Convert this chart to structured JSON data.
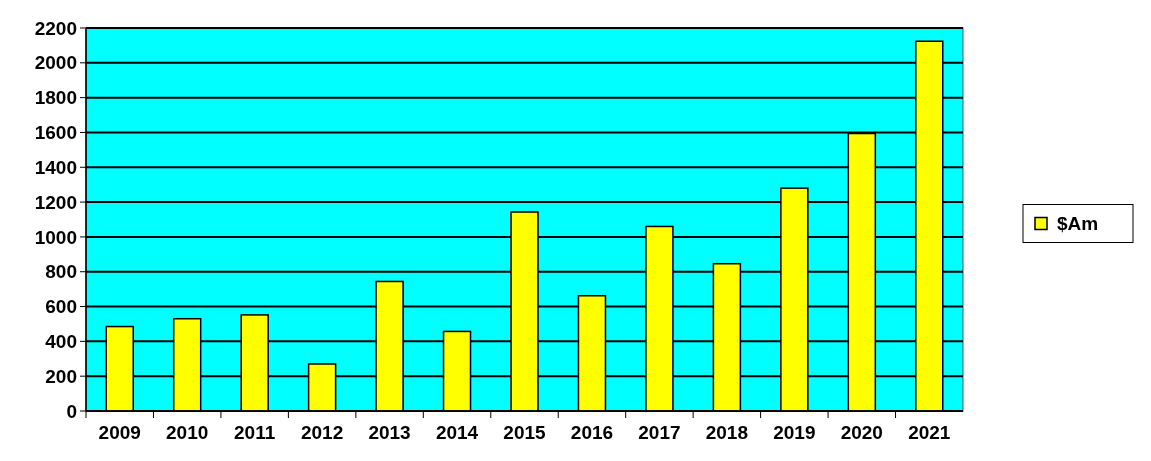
{
  "chart_data": {
    "type": "bar",
    "categories": [
      "2009",
      "2010",
      "2011",
      "2012",
      "2013",
      "2014",
      "2015",
      "2016",
      "2017",
      "2018",
      "2019",
      "2020",
      "2021"
    ],
    "series": [
      {
        "name": "$Am",
        "color": "#ffff00",
        "values": [
          485,
          530,
          552,
          270,
          744,
          457,
          1143,
          662,
          1060,
          846,
          1280,
          1594,
          2124
        ]
      }
    ],
    "ylim": [
      0,
      2200
    ],
    "yticks": [
      0,
      200,
      400,
      600,
      800,
      1000,
      1200,
      1400,
      1600,
      1800,
      2000,
      2200
    ],
    "grid": "y",
    "legend": "right"
  }
}
